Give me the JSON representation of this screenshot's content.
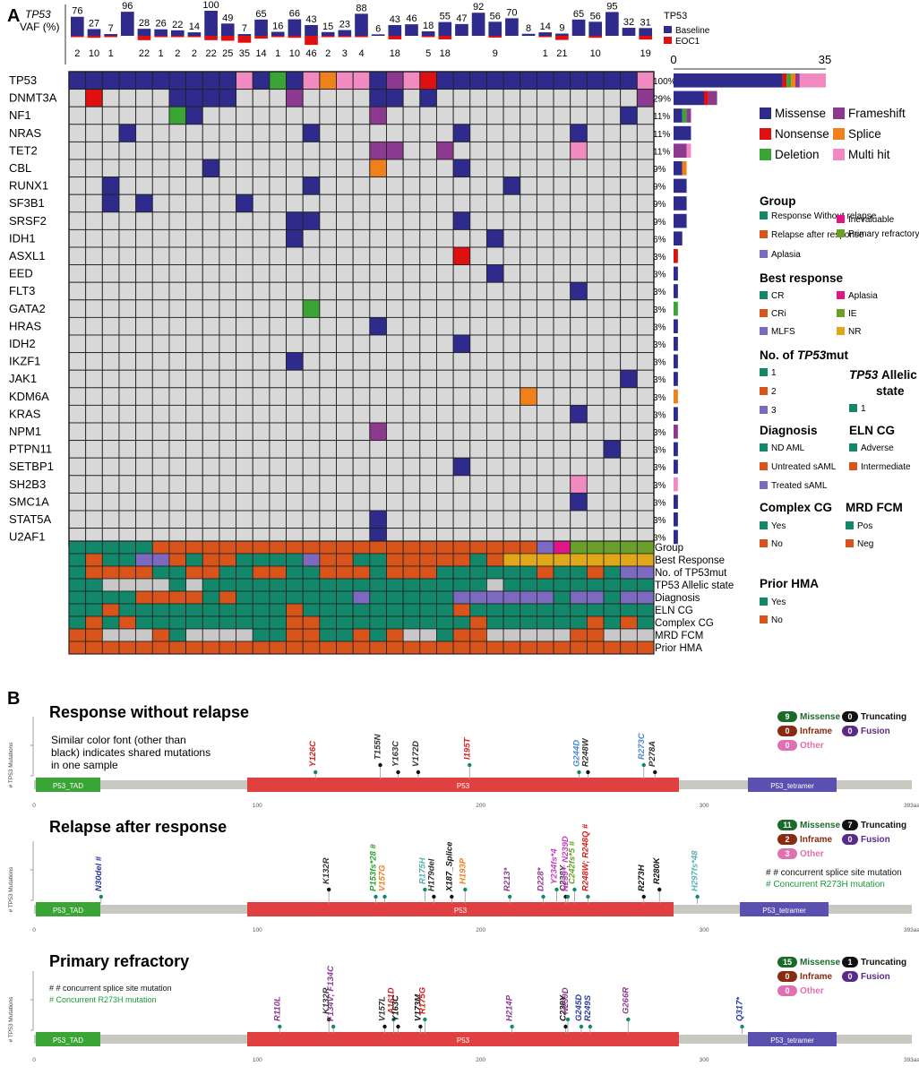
{
  "colors": {
    "missense": "#2e2b8c",
    "frameshift": "#8b3a8f",
    "nonsense": "#e01010",
    "splice": "#f0801a",
    "deletion": "#3aa535",
    "multihit": "#f08ac0",
    "empty": "#d8d8d8",
    "teal": "#13876a",
    "orange": "#d9541a",
    "purple": "#7b6ac0",
    "magenta": "#e0158a",
    "lime": "#6aa02a",
    "gold": "#e0a818",
    "grey": "#c8c8c8",
    "domain_tad": "#3aa535",
    "domain_p53": "#e04040",
    "domain_tet": "#5a50b0",
    "backbone": "#c8c8c0"
  },
  "panel_a": {
    "label": "A",
    "vaf_title": "TP53",
    "vaf_axis": "VAF (%)",
    "vaf_legend_title": "TP53",
    "vaf_legend": [
      "Baseline",
      "EOC1"
    ],
    "baseline": [
      76,
      27,
      7,
      96,
      28,
      26,
      22,
      14,
      100,
      49,
      7,
      65,
      16,
      66,
      43,
      15,
      23,
      88,
      6,
      43,
      46,
      18,
      55,
      47,
      92,
      56,
      70,
      8,
      14,
      9,
      65,
      56,
      95,
      32,
      31
    ],
    "eoc1": [
      2,
      10,
      1,
      "",
      22,
      1,
      2,
      2,
      22,
      25,
      35,
      14,
      1,
      10,
      46,
      2,
      3,
      4,
      "",
      18,
      "",
      5,
      18,
      "",
      "",
      9,
      "",
      "",
      1,
      21,
      "",
      10,
      "",
      "",
      19
    ],
    "genes": [
      "TP53",
      "DNMT3A",
      "NF1",
      "NRAS",
      "TET2",
      "CBL",
      "RUNX1",
      "SF3B1",
      "SRSF2",
      "IDH1",
      "ASXL1",
      "EED",
      "FLT3",
      "GATA2",
      "HRAS",
      "IDH2",
      "IKZF1",
      "JAK1",
      "KDM6A",
      "KRAS",
      "NPM1",
      "PTPN11",
      "SETBP1",
      "SH2B3",
      "SMC1A",
      "STAT5A",
      "U2AF1"
    ],
    "percents": [
      "100%",
      "29%",
      "11%",
      "11%",
      "11%",
      "9%",
      "9%",
      "9%",
      "9%",
      "6%",
      "3%",
      "3%",
      "3%",
      "3%",
      "3%",
      "3%",
      "3%",
      "3%",
      "3%",
      "3%",
      "3%",
      "3%",
      "3%",
      "3%",
      "3%",
      "3%",
      "3%"
    ],
    "mutation_counts": [
      35,
      10,
      4,
      4,
      4,
      3,
      3,
      3,
      3,
      2,
      1,
      1,
      1,
      1,
      1,
      1,
      1,
      1,
      1,
      1,
      1,
      1,
      1,
      1,
      1,
      1,
      1
    ],
    "bar_axis": [
      "0",
      "35"
    ],
    "mutation_legend": [
      "Missense",
      "Frameshift",
      "Nonsense",
      "Splice",
      "Deletion",
      "Multi hit"
    ],
    "clinical_rows": [
      "Group",
      "Best Response",
      "No. of TP53mut",
      "TP53 Allelic state",
      "Diagnosis",
      "ELN CG",
      "Complex CG",
      "MRD FCM",
      "Prior HMA"
    ],
    "legend_group": {
      "title": "Group",
      "items": [
        "Response Without relapse",
        "Inevaluable",
        "Relapse after response",
        "Primary refractory",
        "Aplasia"
      ]
    },
    "legend_best": {
      "title": "Best response",
      "items": [
        "CR",
        "Aplasia",
        "CRi",
        "IE",
        "MLFS",
        "NR"
      ]
    },
    "legend_ntp53": {
      "title": "No. of",
      "title_italic": "TP53",
      "title_suffix": "mut",
      "items": [
        "1",
        "2",
        "3"
      ]
    },
    "legend_allelic": {
      "title_italic": "TP53",
      "title_suffix": "Allelic",
      "title_line2": "state",
      "items": [
        "1"
      ]
    },
    "legend_diag": {
      "title": "Diagnosis",
      "items": [
        "ND AML",
        "Untreated sAML",
        "Treated sAML"
      ]
    },
    "legend_eln": {
      "title": "ELN CG",
      "items": [
        "Adverse",
        "Intermediate"
      ]
    },
    "legend_complex": {
      "title": "Complex CG",
      "items": [
        "Yes",
        "No"
      ]
    },
    "legend_mrd": {
      "title": "MRD FCM",
      "items": [
        "Pos",
        "Neg"
      ]
    },
    "legend_hma": {
      "title": "Prior HMA",
      "items": [
        "Yes",
        "No"
      ]
    }
  },
  "panel_b": {
    "label": "B",
    "y_axis": "# TP53 Mutations",
    "domains": [
      "P53_TAD",
      "P53",
      "P53_tetramer"
    ],
    "ticks": [
      "0",
      "100",
      "200",
      "300",
      "393aa"
    ],
    "legend_labels": {
      "missense": "Missense",
      "truncating": "Truncating",
      "inframe": "Inframe",
      "fusion": "Fusion",
      "other": "Other"
    },
    "sections": [
      {
        "title": "Response without relapse",
        "note": [
          "Similar color font (other than",
          "black) indicates shared mutations",
          "in one sample"
        ],
        "counts": {
          "missense": "9",
          "truncating": "0",
          "inframe": "0",
          "fusion": "0",
          "other": "0"
        },
        "mutations": [
          {
            "label": "Y126C",
            "pos": 126,
            "color": "#d62020"
          },
          {
            "label": "T155N",
            "pos": 155,
            "color": "#333333"
          },
          {
            "label": "Y163C",
            "pos": 163,
            "color": "#333333"
          },
          {
            "label": "V172D",
            "pos": 172,
            "color": "#333333"
          },
          {
            "label": "I195T",
            "pos": 195,
            "color": "#d62020"
          },
          {
            "label": "G244D",
            "pos": 244,
            "color": "#4a8ad0"
          },
          {
            "label": "R248W",
            "pos": 248,
            "color": "#333333"
          },
          {
            "label": "R273C",
            "pos": 273,
            "color": "#4a8ad0"
          },
          {
            "label": "P278A",
            "pos": 278,
            "color": "#333333"
          }
        ]
      },
      {
        "title": "Relapse after response",
        "notes": [
          "# # concurrent splice site mutation",
          "# Concurrent R273H mutation"
        ],
        "counts": {
          "missense": "11",
          "truncating": "7",
          "inframe": "2",
          "fusion": "0",
          "other": "3"
        },
        "mutations": [
          {
            "label": "N30del #",
            "pos": 30,
            "color": "#2a3a9a"
          },
          {
            "label": "K132R",
            "pos": 132,
            "color": "#333333"
          },
          {
            "label": "P153fs*28 #",
            "pos": 153,
            "color": "#2aa02a"
          },
          {
            "label": "V157G",
            "pos": 157,
            "color": "#f0801a"
          },
          {
            "label": "R175H",
            "pos": 175,
            "color": "#5ab0b0"
          },
          {
            "label": "H179del",
            "pos": 179,
            "color": "#333333"
          },
          {
            "label": "X187_Splice",
            "pos": 187,
            "color": "#111111"
          },
          {
            "label": "H193P",
            "pos": 193,
            "color": "#f0801a"
          },
          {
            "label": "R213*",
            "pos": 213,
            "color": "#8b3a8f"
          },
          {
            "label": "D228*",
            "pos": 228,
            "color": "#8b3a8f"
          },
          {
            "label": "Y234fs*4",
            "pos": 234,
            "color": "#c040c0"
          },
          {
            "label": "C238Y",
            "pos": 238,
            "color": "#333333"
          },
          {
            "label": "N239*; N239D",
            "pos": 239,
            "color": "#c040c0"
          },
          {
            "label": "C242fs*5 #",
            "pos": 242,
            "color": "#6aa02a"
          },
          {
            "label": "R248W; R248Q #",
            "pos": 248,
            "color": "#d62020"
          },
          {
            "label": "R273H",
            "pos": 273,
            "color": "#111111"
          },
          {
            "label": "R280K",
            "pos": 280,
            "color": "#111111"
          },
          {
            "label": "H297fs*48",
            "pos": 297,
            "color": "#5ab0b0"
          }
        ]
      },
      {
        "title": "Primary refractory",
        "notes": [
          "# # concurrent splice site mutation",
          "#   Concurrent R273H mutation"
        ],
        "counts": {
          "missense": "15",
          "truncating": "1",
          "inframe": "0",
          "fusion": "0",
          "other": "0"
        },
        "mutations": [
          {
            "label": "R110L",
            "pos": 110,
            "color": "#8b3a8f"
          },
          {
            "label": "K132R",
            "pos": 132,
            "color": "#333333"
          },
          {
            "label": "F134V; F134C",
            "pos": 134,
            "color": "#8b3a8f"
          },
          {
            "label": "V157L",
            "pos": 157,
            "color": "#333333"
          },
          {
            "label": "A161D",
            "pos": 161,
            "color": "#d62020"
          },
          {
            "label": "Y163C",
            "pos": 163,
            "color": "#111111"
          },
          {
            "label": "V173M",
            "pos": 173,
            "color": "#111111"
          },
          {
            "label": "R175G",
            "pos": 175,
            "color": "#d62020"
          },
          {
            "label": "H214P",
            "pos": 214,
            "color": "#8b3a8f"
          },
          {
            "label": "C238Y",
            "pos": 238,
            "color": "#111111"
          },
          {
            "label": "N239D",
            "pos": 239,
            "color": "#8b3a8f"
          },
          {
            "label": "G245D",
            "pos": 245,
            "color": "#2a3a9a"
          },
          {
            "label": "R249S",
            "pos": 249,
            "color": "#2a3a9a"
          },
          {
            "label": "G266R",
            "pos": 266,
            "color": "#8b3a8f"
          },
          {
            "label": "Q317*",
            "pos": 317,
            "color": "#2a3a9a"
          }
        ]
      }
    ]
  }
}
